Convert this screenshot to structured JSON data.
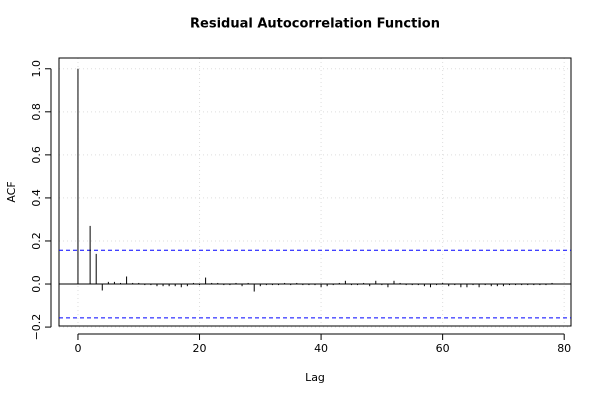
{
  "chart_data": {
    "type": "acf",
    "title": "Residual Autocorrelation Function",
    "x_label": "Lag",
    "y_label": "ACF",
    "x": [
      0,
      1,
      2,
      3,
      4,
      5,
      6,
      7,
      8,
      9,
      10,
      11,
      12,
      13,
      14,
      15,
      16,
      17,
      18,
      19,
      20,
      21,
      22,
      23,
      24,
      25,
      26,
      27,
      28,
      29,
      30,
      31,
      32,
      33,
      34,
      35,
      36,
      37,
      38,
      39,
      40,
      41,
      42,
      43,
      44,
      45,
      46,
      47,
      48,
      49,
      50,
      51,
      52,
      53,
      54,
      55,
      56,
      57,
      58,
      59,
      60,
      61,
      62,
      63,
      64,
      65,
      66,
      67,
      68,
      69,
      70,
      71,
      72,
      73,
      74,
      75,
      76,
      77,
      78
    ],
    "values": [
      1.0,
      0.0,
      0.27,
      0.14,
      -0.03,
      0.01,
      0.01,
      0.005,
      0.035,
      0.005,
      0.005,
      -0.005,
      -0.005,
      -0.01,
      -0.01,
      -0.01,
      -0.01,
      -0.015,
      -0.01,
      0.005,
      -0.005,
      0.03,
      0.005,
      0.005,
      -0.005,
      -0.005,
      0.005,
      -0.01,
      0.005,
      -0.035,
      -0.01,
      -0.005,
      -0.005,
      -0.005,
      0.005,
      -0.005,
      0.005,
      -0.005,
      -0.005,
      -0.005,
      -0.015,
      -0.01,
      -0.005,
      0.005,
      0.015,
      -0.005,
      -0.005,
      0.005,
      -0.01,
      0.015,
      -0.005,
      -0.015,
      0.015,
      0.005,
      -0.005,
      -0.005,
      -0.005,
      -0.01,
      -0.015,
      -0.005,
      0.005,
      -0.01,
      -0.005,
      -0.015,
      -0.015,
      -0.005,
      -0.015,
      -0.005,
      -0.01,
      -0.01,
      -0.01,
      -0.005,
      -0.005,
      -0.005,
      -0.005,
      -0.005,
      -0.005,
      -0.005,
      0.005
    ],
    "color": "#000000",
    "confidence_limits": [
      0.157,
      -0.157
    ],
    "confidence_color": "#0000ff",
    "xlim": [
      -3.12,
      81.12
    ],
    "ylim": [
      -0.195,
      1.05
    ],
    "xticks": [
      0,
      20,
      40,
      60,
      80
    ],
    "yticks": [
      {
        "value": -0.2,
        "label": "−0.2"
      },
      {
        "value": 0,
        "label": "0.0"
      },
      0.2,
      0.4,
      0.6,
      0.8,
      {
        "value": 1,
        "label": "1.0"
      }
    ],
    "grid": true
  }
}
